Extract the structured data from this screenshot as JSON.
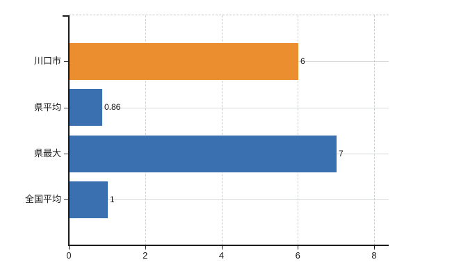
{
  "chart_data": {
    "type": "bar",
    "orientation": "horizontal",
    "title": "",
    "xlabel": "",
    "ylabel": "",
    "categories": [
      "川口市",
      "県平均",
      "県最大",
      "全国平均"
    ],
    "values": [
      6,
      0.86,
      7,
      1
    ],
    "value_labels": [
      "6",
      "0.86",
      "7",
      "1"
    ],
    "bar_colors": [
      "#eb8e2f",
      "#3b70b0",
      "#3b70b0",
      "#3b70b0"
    ],
    "x_ticks": [
      0,
      2,
      4,
      6,
      8
    ],
    "x_tick_labels": [
      "0",
      "2",
      "4",
      "6",
      "8"
    ],
    "xlim": [
      0,
      8.38
    ],
    "grid": "on",
    "legend": "none",
    "colors": {
      "highlight_orange": "#eb8e2f",
      "series_blue": "#3b70b0",
      "gridline": "#d6dad6",
      "axis": "#1a1a1a",
      "text": "#1a1a1a",
      "background": "#ffffff"
    }
  }
}
